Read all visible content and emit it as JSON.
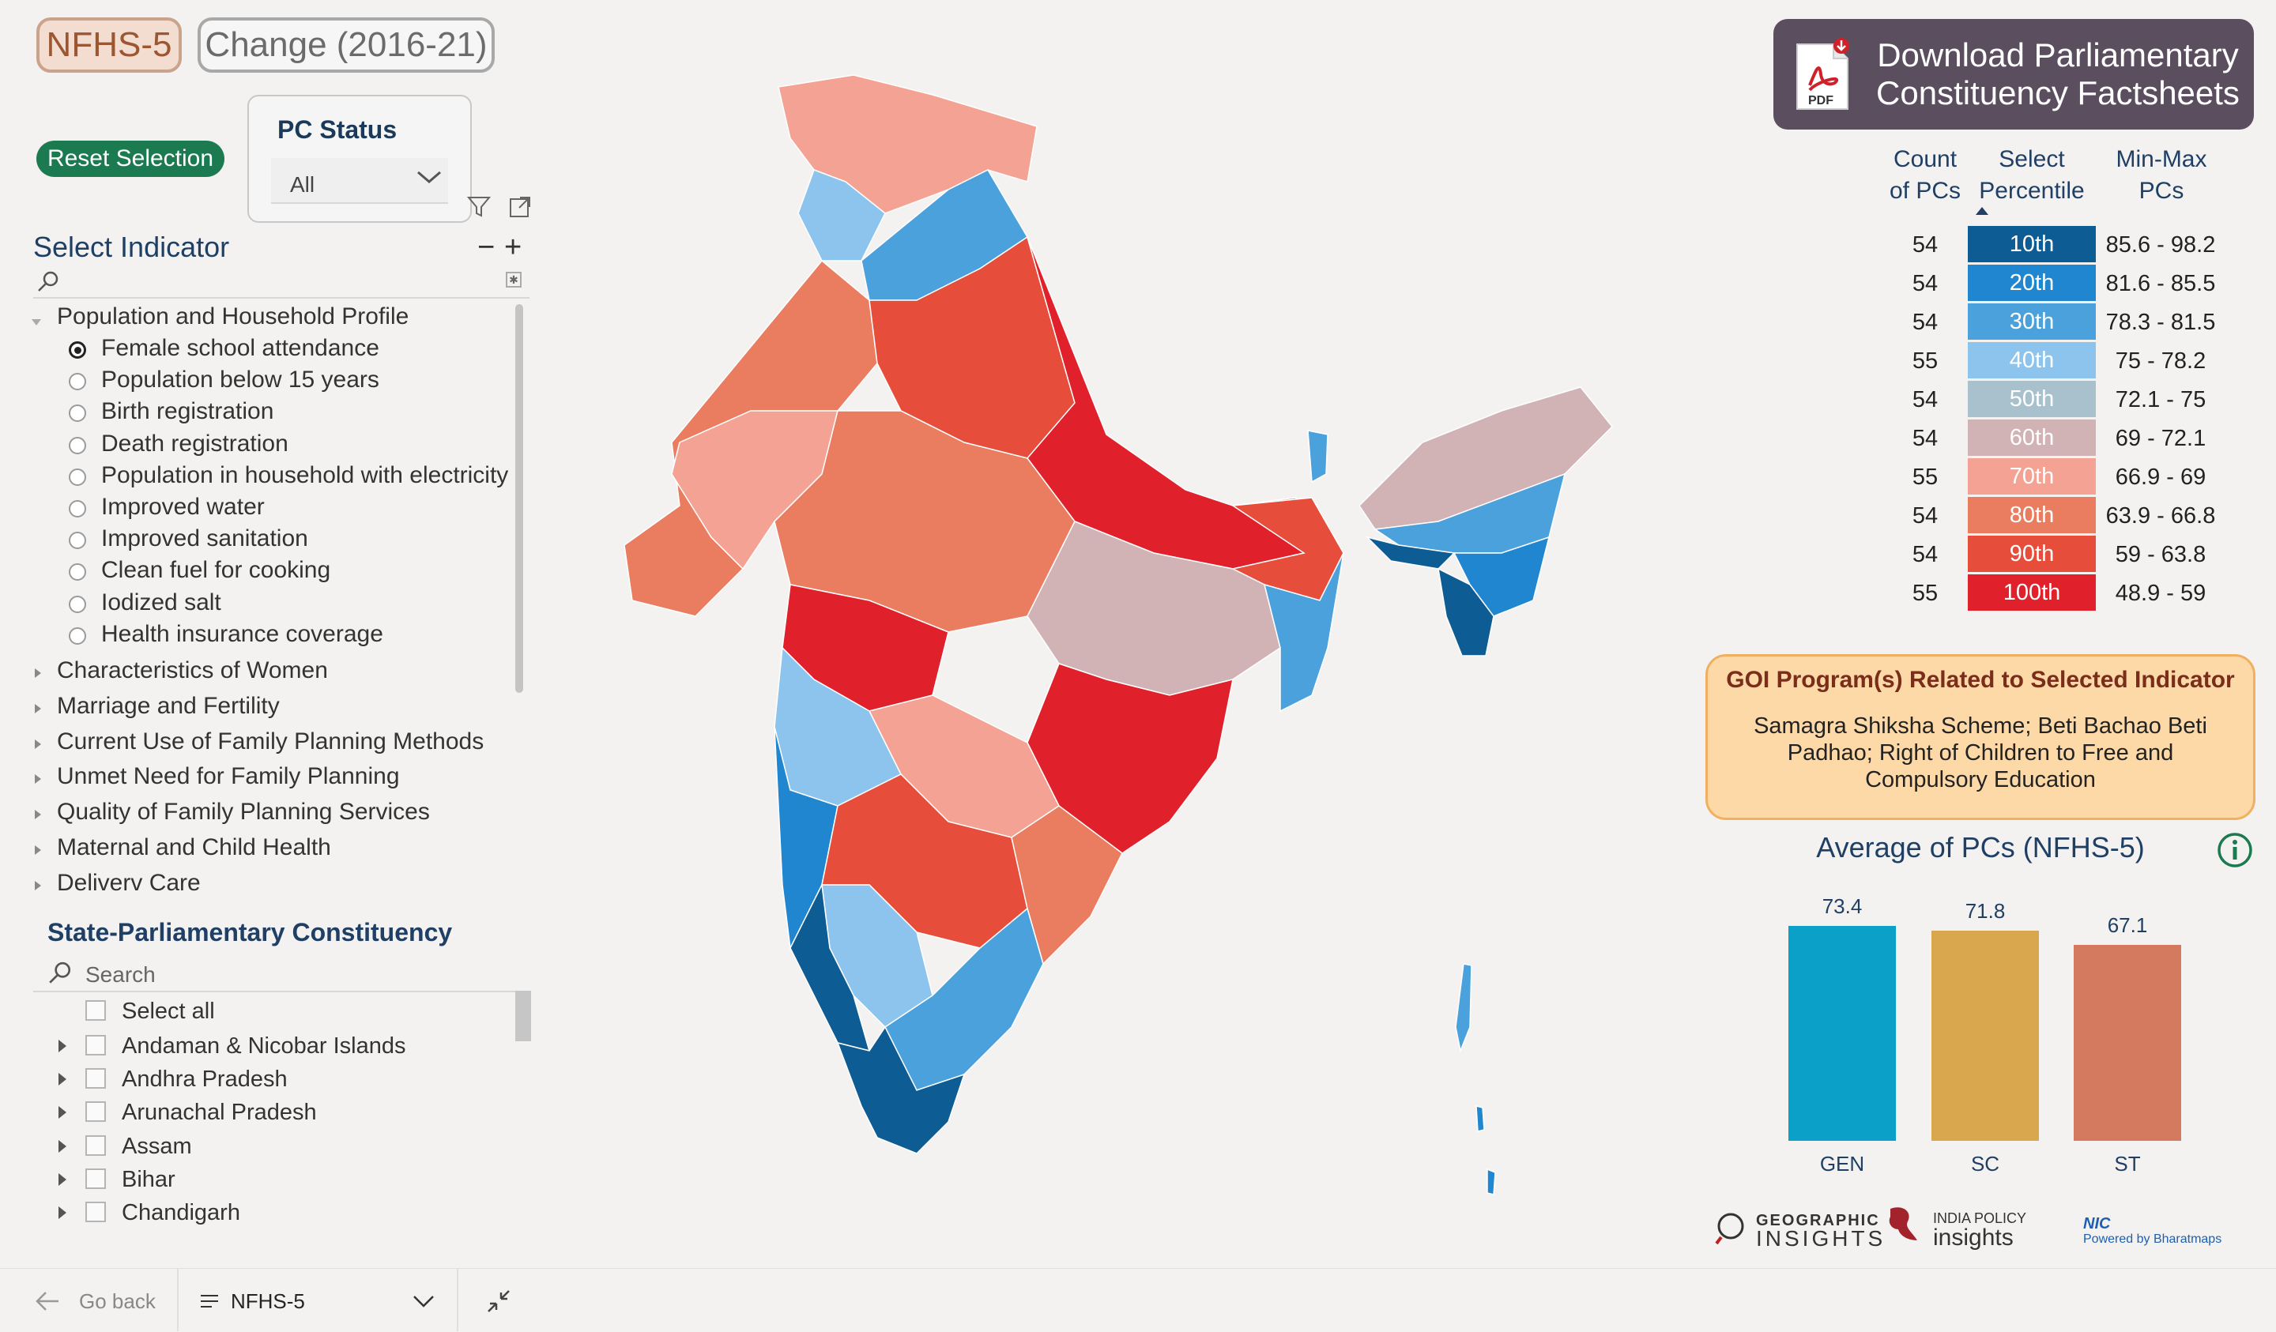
{
  "top_toggle": {
    "nfhs5": "NFHS-5",
    "change": "Change (2016-21)"
  },
  "reset_button": "Reset Selection",
  "pc_status": {
    "title": "PC Status",
    "value": "All"
  },
  "indicator": {
    "title": "Select Indicator",
    "collapse": "−",
    "expand": "+",
    "group_open": "Population and Household Profile",
    "options": [
      {
        "label": "Female school attendance",
        "selected": true
      },
      {
        "label": "Population below 15 years",
        "selected": false
      },
      {
        "label": "Birth registration",
        "selected": false
      },
      {
        "label": "Death registration",
        "selected": false
      },
      {
        "label": "Population in household with electricity",
        "selected": false
      },
      {
        "label": "Improved water",
        "selected": false
      },
      {
        "label": "Improved sanitation",
        "selected": false
      },
      {
        "label": "Clean fuel for cooking",
        "selected": false
      },
      {
        "label": "Iodized salt",
        "selected": false
      },
      {
        "label": "Health insurance coverage",
        "selected": false
      }
    ],
    "groups": [
      "Characteristics of Women",
      "Marriage and Fertility",
      "Current Use of Family Planning Methods",
      "Unmet Need for Family Planning",
      "Quality of Family Planning Services",
      "Maternal and Child Health",
      "Deliverv Care"
    ]
  },
  "state_pc": {
    "title": "State-Parliamentary Constituency",
    "search_placeholder": "Search",
    "select_all": "Select all",
    "states": [
      "Andaman & Nicobar Islands",
      "Andhra Pradesh",
      "Arunachal Pradesh",
      "Assam",
      "Bihar",
      "Chandigarh"
    ]
  },
  "bottom": {
    "go_back": "Go back",
    "page": "NFHS-5"
  },
  "download": {
    "line1": "Download Parliamentary",
    "line2": "Constituency Factsheets",
    "pdf_label": "PDF"
  },
  "percentile_table": {
    "headers": {
      "count": "Count of PCs",
      "select": "Select Percentile",
      "minmax": "Min-Max PCs"
    },
    "rows": [
      {
        "count": "54",
        "pct": "10th",
        "range": "85.6 - 98.2",
        "color": "#0d5c94"
      },
      {
        "count": "54",
        "pct": "20th",
        "range": "81.6 - 85.5",
        "color": "#1f86cf"
      },
      {
        "count": "54",
        "pct": "30th",
        "range": "78.3 - 81.5",
        "color": "#4aa1dc"
      },
      {
        "count": "55",
        "pct": "40th",
        "range": "75 - 78.2",
        "color": "#8cc4ee"
      },
      {
        "count": "54",
        "pct": "50th",
        "range": "72.1 - 75",
        "color": "#a9c1cd"
      },
      {
        "count": "54",
        "pct": "60th",
        "range": "69 - 72.1",
        "color": "#d1b3b6"
      },
      {
        "count": "55",
        "pct": "70th",
        "range": "66.9 - 69",
        "color": "#f3a293"
      },
      {
        "count": "54",
        "pct": "80th",
        "range": "63.9 - 66.8",
        "color": "#ea7c60"
      },
      {
        "count": "54",
        "pct": "90th",
        "range": "59 - 63.8",
        "color": "#e64d3b"
      },
      {
        "count": "55",
        "pct": "100th",
        "range": "48.9 - 59",
        "color": "#e0202a"
      }
    ]
  },
  "goi": {
    "title": "GOI Program(s) Related to Selected Indicator",
    "text": "Samagra Shiksha Scheme; Beti Bachao Beti Padhao; Right of Children to Free and Compulsory Education"
  },
  "chart_data": {
    "type": "bar",
    "title": "Average of PCs (NFHS-5)",
    "categories": [
      "GEN",
      "SC",
      "ST"
    ],
    "values": [
      73.4,
      71.8,
      67.1
    ],
    "labels": [
      "73.4",
      "71.8",
      "67.1"
    ],
    "colors": [
      "#0aa0c8",
      "#d9a84e",
      "#d47a5e"
    ],
    "ylim": [
      0,
      80
    ]
  },
  "logos": {
    "geo_line1": "GEOGRAPHIC",
    "geo_line2": "INSIGHTS",
    "ipi_line1": "INDIA POLICY",
    "ipi_line2": "insights",
    "nic": "NIC",
    "nic_sub": "Powered by Bharatmaps"
  },
  "map": {
    "palette": [
      "#0d5c94",
      "#1f86cf",
      "#4aa1dc",
      "#8cc4ee",
      "#a9c1cd",
      "#d1b3b6",
      "#f3a293",
      "#ea7c60",
      "#e64d3b",
      "#e0202a"
    ]
  }
}
